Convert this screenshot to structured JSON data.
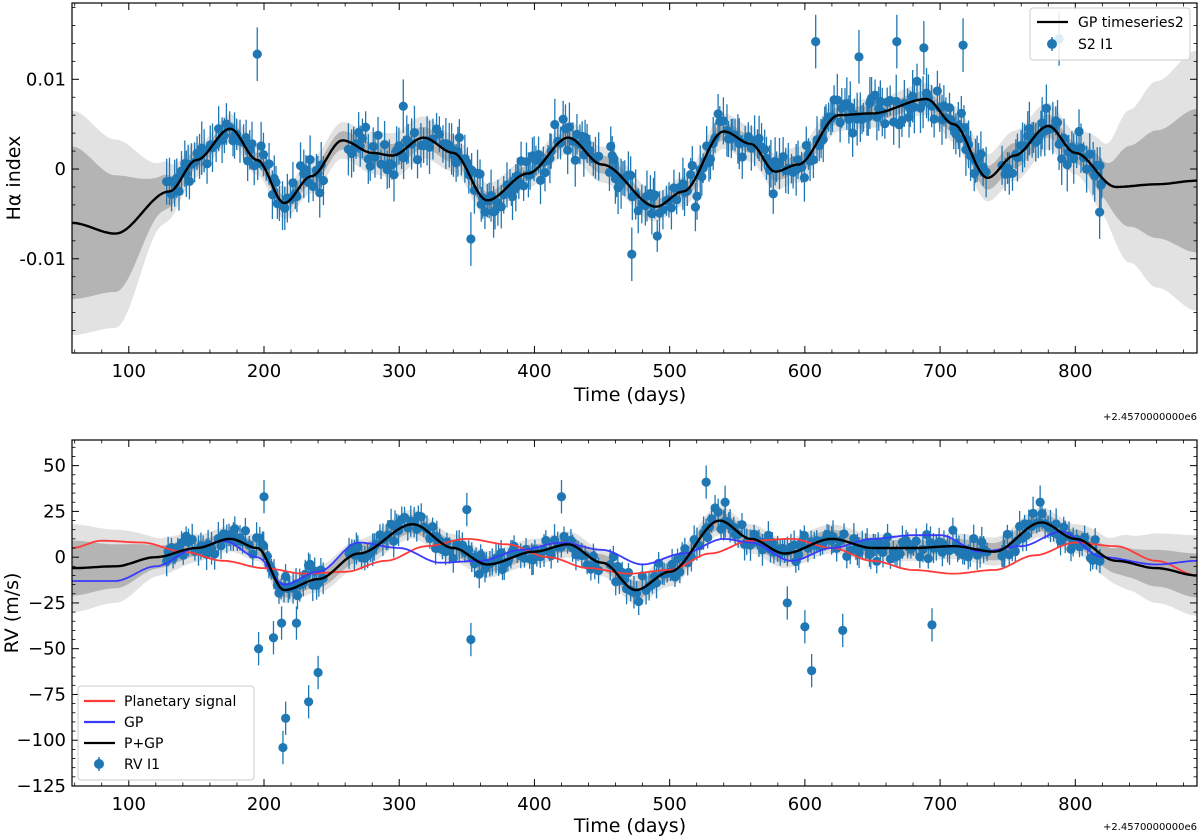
{
  "chart_data": [
    {
      "type": "scatter",
      "xlabel": "Time (days)",
      "ylabel": "Hα index",
      "offset_label": "+2.4570000000e6",
      "xlim": [
        58,
        890
      ],
      "ylim": [
        -0.0205,
        0.0185
      ],
      "xticks": [
        100,
        200,
        300,
        400,
        500,
        600,
        700,
        800
      ],
      "yticks": [
        {
          "value": 0.01,
          "label": "0.01"
        },
        {
          "value": 0,
          "label": "0"
        },
        {
          "value": -0.01,
          "label": "-0.01"
        }
      ],
      "legend": {
        "position": "top-right",
        "entries": [
          {
            "label": "GP timeseries2",
            "kind": "line",
            "color": "#000000"
          },
          {
            "label": "S2 I1",
            "kind": "errorbar",
            "color": "#1f77b4"
          }
        ]
      },
      "colors": {
        "data": "#1f77b4",
        "model": "#000000",
        "band_inner": "#b4b4b4",
        "band_outer": "#e2e2e2"
      },
      "data_window": [
        128,
        820
      ],
      "model": {
        "name": "GP timeseries2",
        "x": [
          58,
          90,
          130,
          150,
          175,
          195,
          215,
          235,
          258,
          280,
          295,
          318,
          340,
          365,
          395,
          425,
          450,
          490,
          510,
          540,
          560,
          578,
          595,
          625,
          650,
          690,
          710,
          735,
          755,
          780,
          800,
          830,
          860,
          890
        ],
        "y": [
          -0.006,
          -0.0072,
          -0.0025,
          0.001,
          0.0045,
          0.001,
          -0.0038,
          -0.0008,
          0.0032,
          0.0018,
          0.0015,
          0.0035,
          0.0018,
          -0.0035,
          -0.0005,
          0.0035,
          0.0005,
          -0.0042,
          -0.0025,
          0.0042,
          0.0028,
          -0.0003,
          0.0005,
          0.006,
          0.0062,
          0.0078,
          0.005,
          -0.001,
          0.0015,
          0.0048,
          0.0018,
          -0.002,
          -0.0017,
          -0.0013
        ]
      },
      "band_inner": {
        "x": [
          58,
          90,
          125,
          140,
          160,
          200,
          250,
          300,
          350,
          400,
          450,
          500,
          550,
          600,
          650,
          700,
          730,
          760,
          800,
          820,
          840,
          860,
          890
        ],
        "half_width": [
          0.0085,
          0.0065,
          0.002,
          0.0012,
          0.0008,
          0.0008,
          0.001,
          0.0013,
          0.001,
          0.0008,
          0.001,
          0.0008,
          0.001,
          0.001,
          0.0008,
          0.0009,
          0.0013,
          0.0014,
          0.0012,
          0.002,
          0.0045,
          0.006,
          0.008
        ]
      },
      "band_outer": {
        "x": [
          58,
          90,
          125,
          140,
          160,
          200,
          250,
          300,
          350,
          400,
          450,
          500,
          550,
          600,
          650,
          700,
          730,
          760,
          800,
          820,
          840,
          860,
          890
        ],
        "half_width": [
          0.0125,
          0.0105,
          0.0035,
          0.0022,
          0.0016,
          0.0017,
          0.002,
          0.0025,
          0.002,
          0.0016,
          0.002,
          0.0016,
          0.002,
          0.002,
          0.0016,
          0.0018,
          0.0026,
          0.0028,
          0.0024,
          0.004,
          0.0085,
          0.0115,
          0.0145
        ]
      },
      "points": {
        "name": "S2 I1",
        "step": 1.8,
        "scatter": 0.0022,
        "error": 0.0023,
        "extra": [
          {
            "x": 195,
            "y": 0.0128
          },
          {
            "x": 353,
            "y": -0.0078
          },
          {
            "x": 472,
            "y": -0.0095
          },
          {
            "x": 818,
            "y": -0.0048
          },
          {
            "x": 819,
            "y": -0.0018
          },
          {
            "x": 303,
            "y": 0.007
          },
          {
            "x": 608,
            "y": 0.0142
          },
          {
            "x": 668,
            "y": 0.0142
          },
          {
            "x": 717,
            "y": 0.0138
          },
          {
            "x": 788,
            "y": 0.0145
          },
          {
            "x": 640,
            "y": 0.0125
          },
          {
            "x": 688,
            "y": 0.0135
          }
        ]
      }
    },
    {
      "type": "scatter",
      "xlabel": "Time (days)",
      "ylabel": "RV (m/s)",
      "offset_label": "+2.4570000000e6",
      "xlim": [
        58,
        890
      ],
      "ylim": [
        -125,
        64
      ],
      "xticks": [
        100,
        200,
        300,
        400,
        500,
        600,
        700,
        800
      ],
      "yticks": [
        {
          "value": 50,
          "label": "50"
        },
        {
          "value": 25,
          "label": "25"
        },
        {
          "value": 0,
          "label": "0"
        },
        {
          "value": -25,
          "label": "−25"
        },
        {
          "value": -50,
          "label": "−50"
        },
        {
          "value": -75,
          "label": "−75"
        },
        {
          "value": -100,
          "label": "−100"
        },
        {
          "value": -125,
          "label": "−125"
        }
      ],
      "legend": {
        "position": "bottom-left",
        "entries": [
          {
            "label": "Planetary signal",
            "kind": "line",
            "color": "#ff3a3a"
          },
          {
            "label": "GP",
            "kind": "line",
            "color": "#3a3aff"
          },
          {
            "label": "P+GP",
            "kind": "line",
            "color": "#000000"
          },
          {
            "label": "RV I1",
            "kind": "errorbar",
            "color": "#1f77b4"
          }
        ]
      },
      "colors": {
        "data": "#1f77b4",
        "band_inner": "#b4b4b4",
        "band_outer": "#e2e2e2"
      },
      "data_window": [
        128,
        820
      ],
      "planetary": {
        "name": "Planetary signal",
        "color": "#ff3a3a",
        "x": [
          58,
          80,
          110,
          140,
          170,
          200,
          230,
          260,
          290,
          320,
          350,
          380,
          410,
          440,
          470,
          500,
          530,
          560,
          590,
          620,
          650,
          680,
          710,
          740,
          770,
          800,
          830,
          860,
          890
        ],
        "y": [
          5,
          9,
          8,
          3,
          -2,
          -6,
          -9,
          -8,
          -2,
          6,
          10,
          7,
          0,
          -6,
          -9,
          -7,
          2,
          9,
          10,
          5,
          -2,
          -7,
          -9,
          -7,
          1,
          8,
          6,
          -2,
          -10
        ]
      },
      "gp": {
        "name": "GP",
        "color": "#3a3aff",
        "x": [
          58,
          90,
          120,
          150,
          170,
          195,
          215,
          240,
          270,
          300,
          330,
          360,
          390,
          420,
          450,
          480,
          510,
          540,
          560,
          590,
          620,
          650,
          680,
          700,
          730,
          760,
          790,
          820,
          860,
          890
        ],
        "y": [
          -13,
          -13,
          -5,
          5,
          9,
          0,
          -15,
          -8,
          8,
          5,
          -3,
          -2,
          4,
          8,
          4,
          -4,
          2,
          10,
          8,
          -2,
          5,
          10,
          12,
          12,
          3,
          6,
          14,
          0,
          -4,
          -2
        ]
      },
      "combined": {
        "name": "P+GP",
        "color": "#000000",
        "x": [
          58,
          90,
          120,
          150,
          175,
          195,
          215,
          240,
          270,
          310,
          340,
          365,
          400,
          425,
          450,
          475,
          500,
          537,
          560,
          585,
          620,
          650,
          680,
          710,
          740,
          775,
          800,
          830,
          860,
          890
        ],
        "y": [
          -6,
          -5,
          0,
          5,
          10,
          5,
          -18,
          -12,
          2,
          18,
          5,
          -4,
          3,
          7,
          -3,
          -18,
          -8,
          20,
          10,
          2,
          10,
          5,
          5,
          6,
          3,
          19,
          10,
          -2,
          -6,
          -10
        ]
      },
      "band_inner": {
        "x": [
          58,
          90,
          125,
          160,
          200,
          300,
          400,
          500,
          600,
          700,
          760,
          800,
          820,
          840,
          860,
          890
        ],
        "half_width": [
          15,
          12,
          6,
          4,
          4,
          5,
          4,
          5,
          5,
          4,
          5,
          5,
          6,
          8,
          10,
          12
        ]
      },
      "band_outer": {
        "x": [
          58,
          90,
          125,
          160,
          200,
          300,
          400,
          500,
          600,
          700,
          760,
          800,
          820,
          840,
          860,
          890
        ],
        "half_width": [
          24,
          20,
          10,
          7,
          7,
          8,
          7,
          8,
          8,
          7,
          8,
          8,
          11,
          15,
          19,
          22
        ]
      },
      "points": {
        "name": "RV I1",
        "step": 1.9,
        "scatter": 7,
        "error": 7,
        "extra": [
          {
            "x": 196,
            "y": -50
          },
          {
            "x": 200,
            "y": 33
          },
          {
            "x": 207,
            "y": -44
          },
          {
            "x": 213,
            "y": -36
          },
          {
            "x": 214,
            "y": -104
          },
          {
            "x": 216,
            "y": -88
          },
          {
            "x": 224,
            "y": -36
          },
          {
            "x": 233,
            "y": -79
          },
          {
            "x": 240,
            "y": -63
          },
          {
            "x": 350,
            "y": 26
          },
          {
            "x": 353,
            "y": -45
          },
          {
            "x": 420,
            "y": 33
          },
          {
            "x": 527,
            "y": 41
          },
          {
            "x": 600,
            "y": -38
          },
          {
            "x": 605,
            "y": -62
          },
          {
            "x": 628,
            "y": -40
          },
          {
            "x": 694,
            "y": -37
          },
          {
            "x": 587,
            "y": -25
          },
          {
            "x": 541,
            "y": 30
          },
          {
            "x": 774,
            "y": 30
          }
        ]
      }
    }
  ]
}
